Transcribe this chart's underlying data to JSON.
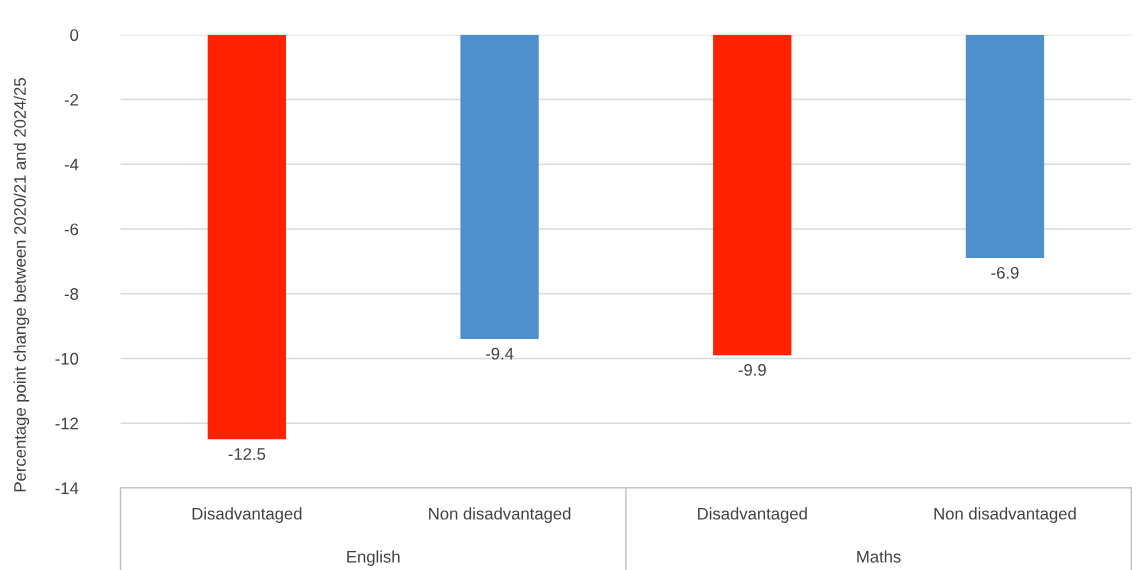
{
  "chart_data": {
    "type": "bar",
    "ylabel": "Percentage point change between 2020/21 and 2024/25",
    "categories": [
      "Disadvantaged",
      "Non disadvantaged",
      "Disadvantaged",
      "Non disadvantaged"
    ],
    "values": [
      -12.5,
      -9.4,
      -9.9,
      -6.9
    ],
    "colors": [
      "#ff2200",
      "#4f8fcc",
      "#ff2200",
      "#4f8fcc"
    ],
    "ylim": [
      -14,
      0
    ],
    "yticks": [
      -14,
      -12,
      -10,
      -8,
      -6,
      -4,
      -2,
      0
    ],
    "grid": "y",
    "data_labels": true,
    "annotations": [
      "English",
      "Maths"
    ]
  }
}
